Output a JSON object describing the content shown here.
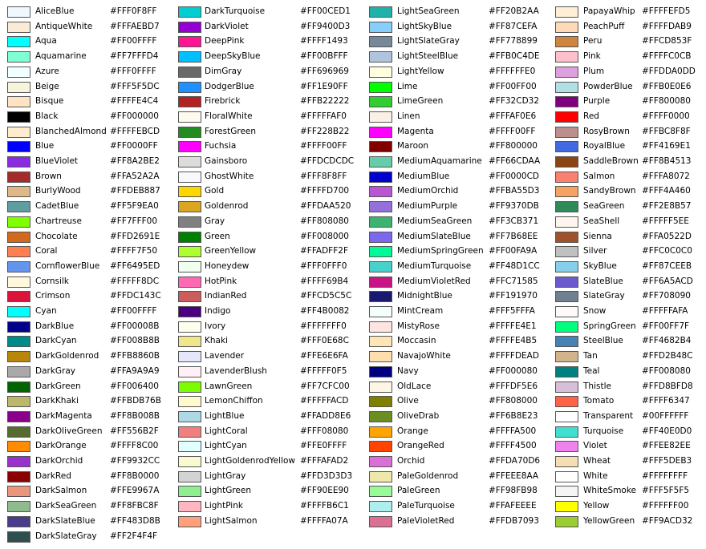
{
  "columns": [
    [
      {
        "name": "AliceBlue",
        "hex": "#FFF0F8FF"
      },
      {
        "name": "AntiqueWhite",
        "hex": "#FFFAEBD7"
      },
      {
        "name": "Aqua",
        "hex": "#FF00FFFF"
      },
      {
        "name": "Aquamarine",
        "hex": "#FF7FFFD4"
      },
      {
        "name": "Azure",
        "hex": "#FFF0FFFF"
      },
      {
        "name": "Beige",
        "hex": "#FFF5F5DC"
      },
      {
        "name": "Bisque",
        "hex": "#FFFFE4C4"
      },
      {
        "name": "Black",
        "hex": "#FF000000"
      },
      {
        "name": "BlanchedAlmond",
        "hex": "#FFFFEBCD"
      },
      {
        "name": "Blue",
        "hex": "#FF0000FF"
      },
      {
        "name": "BlueViolet",
        "hex": "#FF8A2BE2"
      },
      {
        "name": "Brown",
        "hex": "#FFA52A2A"
      },
      {
        "name": "BurlyWood",
        "hex": "#FFDEB887"
      },
      {
        "name": "CadetBlue",
        "hex": "#FF5F9EA0"
      },
      {
        "name": "Chartreuse",
        "hex": "#FF7FFF00"
      },
      {
        "name": "Chocolate",
        "hex": "#FFD2691E"
      },
      {
        "name": "Coral",
        "hex": "#FFFF7F50"
      },
      {
        "name": "CornflowerBlue",
        "hex": "#FF6495ED"
      },
      {
        "name": "Cornsilk",
        "hex": "#FFFFF8DC"
      },
      {
        "name": "Crimson",
        "hex": "#FFDC143C"
      },
      {
        "name": "Cyan",
        "hex": "#FF00FFFF"
      },
      {
        "name": "DarkBlue",
        "hex": "#FF00008B"
      },
      {
        "name": "DarkCyan",
        "hex": "#FF008B8B"
      },
      {
        "name": "DarkGoldenrod",
        "hex": "#FFB8860B"
      },
      {
        "name": "DarkGray",
        "hex": "#FFA9A9A9"
      },
      {
        "name": "DarkGreen",
        "hex": "#FF006400"
      },
      {
        "name": "DarkKhaki",
        "hex": "#FFBDB76B"
      },
      {
        "name": "DarkMagenta",
        "hex": "#FF8B008B"
      },
      {
        "name": "DarkOliveGreen",
        "hex": "#FF556B2F"
      },
      {
        "name": "DarkOrange",
        "hex": "#FFFF8C00"
      },
      {
        "name": "DarkOrchid",
        "hex": "#FF9932CC"
      },
      {
        "name": "DarkRed",
        "hex": "#FF8B0000"
      },
      {
        "name": "DarkSalmon",
        "hex": "#FFE9967A"
      },
      {
        "name": "DarkSeaGreen",
        "hex": "#FF8FBC8F"
      },
      {
        "name": "DarkSlateBlue",
        "hex": "#FF483D8B"
      },
      {
        "name": "DarkSlateGray",
        "hex": "#FF2F4F4F"
      }
    ],
    [
      {
        "name": "DarkTurquoise",
        "hex": "#FF00CED1"
      },
      {
        "name": "DarkViolet",
        "hex": "#FF9400D3"
      },
      {
        "name": "DeepPink",
        "hex": "#FFFF1493"
      },
      {
        "name": "DeepSkyBlue",
        "hex": "#FF00BFFF"
      },
      {
        "name": "DimGray",
        "hex": "#FF696969"
      },
      {
        "name": "DodgerBlue",
        "hex": "#FF1E90FF"
      },
      {
        "name": "Firebrick",
        "hex": "#FFB22222"
      },
      {
        "name": "FloralWhite",
        "hex": "#FFFFFAF0"
      },
      {
        "name": "ForestGreen",
        "hex": "#FF228B22"
      },
      {
        "name": "Fuchsia",
        "hex": "#FFFF00FF"
      },
      {
        "name": "Gainsboro",
        "hex": "#FFDCDCDC"
      },
      {
        "name": "GhostWhite",
        "hex": "#FFF8F8FF"
      },
      {
        "name": "Gold",
        "hex": "#FFFFD700"
      },
      {
        "name": "Goldenrod",
        "hex": "#FFDAA520"
      },
      {
        "name": "Gray",
        "hex": "#FF808080"
      },
      {
        "name": "Green",
        "hex": "#FF008000"
      },
      {
        "name": "GreenYellow",
        "hex": "#FFADFF2F"
      },
      {
        "name": "Honeydew",
        "hex": "#FFF0FFF0"
      },
      {
        "name": "HotPink",
        "hex": "#FFFF69B4"
      },
      {
        "name": "IndianRed",
        "hex": "#FFCD5C5C"
      },
      {
        "name": "Indigo",
        "hex": "#FF4B0082"
      },
      {
        "name": "Ivory",
        "hex": "#FFFFFFF0"
      },
      {
        "name": "Khaki",
        "hex": "#FFF0E68C"
      },
      {
        "name": "Lavender",
        "hex": "#FFE6E6FA"
      },
      {
        "name": "LavenderBlush",
        "hex": "#FFFFF0F5"
      },
      {
        "name": "LawnGreen",
        "hex": "#FF7CFC00"
      },
      {
        "name": "LemonChiffon",
        "hex": "#FFFFFACD"
      },
      {
        "name": "LightBlue",
        "hex": "#FFADD8E6"
      },
      {
        "name": "LightCoral",
        "hex": "#FFF08080"
      },
      {
        "name": "LightCyan",
        "hex": "#FFE0FFFF"
      },
      {
        "name": "LightGoldenrodYellow",
        "hex": "#FFFAFAD2"
      },
      {
        "name": "LightGray",
        "hex": "#FFD3D3D3"
      },
      {
        "name": "LightGreen",
        "hex": "#FF90EE90"
      },
      {
        "name": "LightPink",
        "hex": "#FFFFB6C1"
      },
      {
        "name": "LightSalmon",
        "hex": "#FFFFA07A"
      }
    ],
    [
      {
        "name": "LightSeaGreen",
        "hex": "#FF20B2AA"
      },
      {
        "name": "LightSkyBlue",
        "hex": "#FF87CEFA"
      },
      {
        "name": "LightSlateGray",
        "hex": "#FF778899"
      },
      {
        "name": "LightSteelBlue",
        "hex": "#FFB0C4DE"
      },
      {
        "name": "LightYellow",
        "hex": "#FFFFFFE0"
      },
      {
        "name": "Lime",
        "hex": "#FF00FF00"
      },
      {
        "name": "LimeGreen",
        "hex": "#FF32CD32"
      },
      {
        "name": "Linen",
        "hex": "#FFFAF0E6"
      },
      {
        "name": "Magenta",
        "hex": "#FFFF00FF"
      },
      {
        "name": "Maroon",
        "hex": "#FF800000"
      },
      {
        "name": "MediumAquamarine",
        "hex": "#FF66CDAA"
      },
      {
        "name": "MediumBlue",
        "hex": "#FF0000CD"
      },
      {
        "name": "MediumOrchid",
        "hex": "#FFBA55D3"
      },
      {
        "name": "MediumPurple",
        "hex": "#FF9370DB"
      },
      {
        "name": "MediumSeaGreen",
        "hex": "#FF3CB371"
      },
      {
        "name": "MediumSlateBlue",
        "hex": "#FF7B68EE"
      },
      {
        "name": "MediumSpringGreen",
        "hex": "#FF00FA9A"
      },
      {
        "name": "MediumTurquoise",
        "hex": "#FF48D1CC"
      },
      {
        "name": "MediumVioletRed",
        "hex": "#FFC71585"
      },
      {
        "name": "MidnightBlue",
        "hex": "#FF191970"
      },
      {
        "name": "MintCream",
        "hex": "#FFF5FFFA"
      },
      {
        "name": "MistyRose",
        "hex": "#FFFFE4E1"
      },
      {
        "name": "Moccasin",
        "hex": "#FFFFE4B5"
      },
      {
        "name": "NavajoWhite",
        "hex": "#FFFFDEAD"
      },
      {
        "name": "Navy",
        "hex": "#FF000080"
      },
      {
        "name": "OldLace",
        "hex": "#FFFDF5E6"
      },
      {
        "name": "Olive",
        "hex": "#FF808000"
      },
      {
        "name": "OliveDrab",
        "hex": "#FF6B8E23"
      },
      {
        "name": "Orange",
        "hex": "#FFFFA500"
      },
      {
        "name": "OrangeRed",
        "hex": "#FFFF4500"
      },
      {
        "name": "Orchid",
        "hex": "#FFDA70D6"
      },
      {
        "name": "PaleGoldenrod",
        "hex": "#FFEEE8AA"
      },
      {
        "name": "PaleGreen",
        "hex": "#FF98FB98"
      },
      {
        "name": "PaleTurquoise",
        "hex": "#FFAFEEEE"
      },
      {
        "name": "PaleVioletRed",
        "hex": "#FFDB7093"
      }
    ],
    [
      {
        "name": "PapayaWhip",
        "hex": "#FFFFEFD5"
      },
      {
        "name": "PeachPuff",
        "hex": "#FFFFDAB9"
      },
      {
        "name": "Peru",
        "hex": "#FFCD853F"
      },
      {
        "name": "Pink",
        "hex": "#FFFFC0CB"
      },
      {
        "name": "Plum",
        "hex": "#FFDDA0DD"
      },
      {
        "name": "PowderBlue",
        "hex": "#FFB0E0E6"
      },
      {
        "name": "Purple",
        "hex": "#FF800080"
      },
      {
        "name": "Red",
        "hex": "#FFFF0000"
      },
      {
        "name": "RosyBrown",
        "hex": "#FFBC8F8F"
      },
      {
        "name": "RoyalBlue",
        "hex": "#FF4169E1"
      },
      {
        "name": "SaddleBrown",
        "hex": "#FF8B4513"
      },
      {
        "name": "Salmon",
        "hex": "#FFFA8072"
      },
      {
        "name": "SandyBrown",
        "hex": "#FFF4A460"
      },
      {
        "name": "SeaGreen",
        "hex": "#FF2E8B57"
      },
      {
        "name": "SeaShell",
        "hex": "#FFFFF5EE"
      },
      {
        "name": "Sienna",
        "hex": "#FFA0522D"
      },
      {
        "name": "Silver",
        "hex": "#FFC0C0C0"
      },
      {
        "name": "SkyBlue",
        "hex": "#FF87CEEB"
      },
      {
        "name": "SlateBlue",
        "hex": "#FF6A5ACD"
      },
      {
        "name": "SlateGray",
        "hex": "#FF708090"
      },
      {
        "name": "Snow",
        "hex": "#FFFFFAFA"
      },
      {
        "name": "SpringGreen",
        "hex": "#FF00FF7F"
      },
      {
        "name": "SteelBlue",
        "hex": "#FF4682B4"
      },
      {
        "name": "Tan",
        "hex": "#FFD2B48C"
      },
      {
        "name": "Teal",
        "hex": "#FF008080"
      },
      {
        "name": "Thistle",
        "hex": "#FFD8BFD8"
      },
      {
        "name": "Tomato",
        "hex": "#FFFF6347"
      },
      {
        "name": "Transparent",
        "hex": "#00FFFFFF"
      },
      {
        "name": "Turquoise",
        "hex": "#FF40E0D0"
      },
      {
        "name": "Violet",
        "hex": "#FFEE82EE"
      },
      {
        "name": "Wheat",
        "hex": "#FFF5DEB3"
      },
      {
        "name": "White",
        "hex": "#FFFFFFFF"
      },
      {
        "name": "WhiteSmoke",
        "hex": "#FFF5F5F5"
      },
      {
        "name": "Yellow",
        "hex": "#FFFFFF00"
      },
      {
        "name": "YellowGreen",
        "hex": "#FF9ACD32"
      }
    ]
  ]
}
